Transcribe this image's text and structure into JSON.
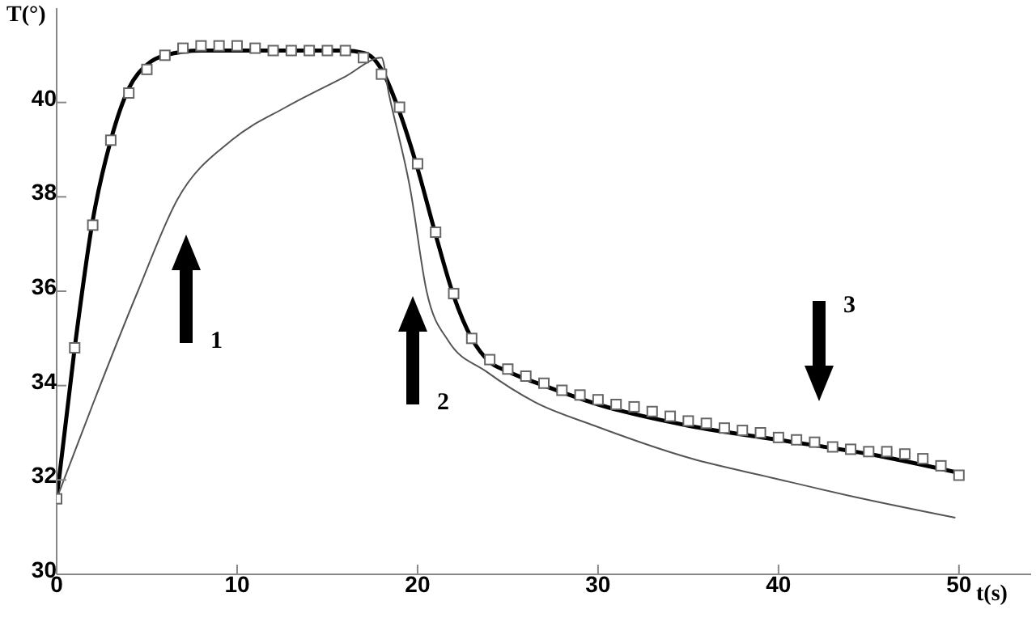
{
  "chart_data": {
    "type": "line",
    "xlabel": "t(s)",
    "ylabel": "T(°)",
    "xlim": [
      0,
      54
    ],
    "xticks": [
      0,
      10,
      20,
      30,
      40,
      50
    ],
    "ylim": [
      30,
      42
    ],
    "yticks": [
      30,
      32,
      34,
      36,
      38,
      40
    ],
    "grid": false,
    "legend": false,
    "series": [
      {
        "type": "scatter",
        "marker": "square",
        "color": "#666666",
        "x": [
          0,
          1,
          2,
          3,
          4,
          5,
          6,
          7,
          8,
          9,
          10,
          11,
          12,
          13,
          14,
          15,
          16,
          17,
          18,
          19,
          20,
          21,
          22,
          23,
          24,
          25,
          26,
          27,
          28,
          29,
          30,
          31,
          32,
          33,
          34,
          35,
          36,
          37,
          38,
          39,
          40,
          41,
          42,
          43,
          44,
          45,
          46,
          47,
          48,
          49,
          50
        ],
        "values": [
          31.6,
          34.8,
          37.4,
          39.2,
          40.2,
          40.7,
          41.0,
          41.15,
          41.2,
          41.2,
          41.2,
          41.15,
          41.1,
          41.1,
          41.1,
          41.1,
          41.1,
          40.95,
          40.6,
          39.9,
          38.7,
          37.25,
          35.95,
          35.0,
          34.55,
          34.35,
          34.2,
          34.05,
          33.9,
          33.8,
          33.7,
          33.6,
          33.55,
          33.45,
          33.35,
          33.25,
          33.2,
          33.1,
          33.05,
          33.0,
          32.9,
          32.85,
          32.8,
          32.7,
          32.65,
          32.6,
          32.6,
          32.55,
          32.45,
          32.3,
          32.1
        ]
      },
      {
        "type": "line",
        "marker": "none",
        "color": "#000000",
        "x": [
          0,
          1,
          2,
          3,
          4,
          5,
          6,
          8,
          12,
          16,
          17,
          17.5,
          18,
          19,
          20,
          21,
          22,
          23,
          24,
          25,
          27,
          30,
          35,
          40,
          45,
          50
        ],
        "values": [
          31.6,
          34.8,
          37.5,
          39.2,
          40.3,
          40.8,
          41.0,
          41.1,
          41.1,
          41.1,
          41.05,
          40.95,
          40.7,
          39.8,
          38.6,
          37.2,
          35.9,
          35.0,
          34.5,
          34.3,
          34.0,
          33.6,
          33.15,
          32.85,
          32.55,
          32.15
        ]
      },
      {
        "type": "line",
        "marker": "none",
        "color": "#555555",
        "x": [
          0,
          2,
          4.5,
          6.7,
          9.7,
          12.7,
          16,
          18,
          18.4,
          19.6,
          20.5,
          21.7,
          23.8,
          26.5,
          29.8,
          35.2,
          39.6,
          44.1,
          49.8
        ],
        "values": [
          31.6,
          33.6,
          36.0,
          37.95,
          39.2,
          39.9,
          40.55,
          40.95,
          40.2,
          38.15,
          36.0,
          34.95,
          34.3,
          33.65,
          33.15,
          32.45,
          32.05,
          31.65,
          31.2
        ]
      }
    ],
    "annotations": [
      "1",
      "2",
      "3"
    ]
  }
}
